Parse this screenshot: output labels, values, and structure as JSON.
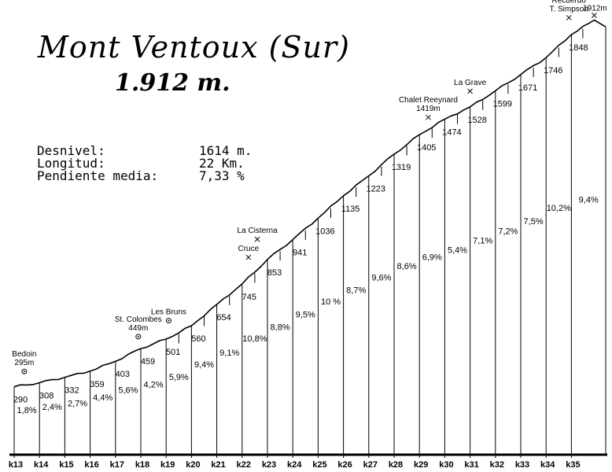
{
  "header": {
    "title": "Mont Ventoux (Sur)",
    "subtitle": "1.912 m."
  },
  "stats": [
    {
      "label": "Desnivel:",
      "value": "1614 m."
    },
    {
      "label": "Longitud:",
      "value": "22 Km."
    },
    {
      "label": "Pendiente media:",
      "value": "7,33 %"
    }
  ],
  "chart_data": {
    "type": "area",
    "xlabel": "",
    "ylabel": "",
    "xlim": [
      13,
      35.9
    ],
    "ylim": [
      0,
      1912
    ],
    "km_labels": [
      "k13",
      "k14",
      "k15",
      "k16",
      "k17",
      "k18",
      "k19",
      "k20",
      "k21",
      "k22",
      "k23",
      "k24",
      "k25",
      "k26",
      "k27",
      "k28",
      "k29",
      "k30",
      "k31",
      "k32",
      "k33",
      "k34",
      "k35"
    ],
    "km_marks": [
      13,
      14,
      15,
      16,
      17,
      18,
      19,
      20,
      21,
      22,
      23,
      24,
      25,
      26,
      27,
      28,
      29,
      30,
      31,
      32,
      33,
      34,
      35
    ],
    "km_altitudes": [
      290,
      308,
      332,
      359,
      403,
      459,
      501,
      560,
      654,
      745,
      853,
      941,
      1036,
      1135,
      1223,
      1319,
      1405,
      1474,
      1528,
      1599,
      1671,
      1746,
      1848
    ],
    "segment_gradients": [
      "1,8%",
      "2,4%",
      "2,7%",
      "4,4%",
      "5,6%",
      "4,2%",
      "5,9%",
      "9,4%",
      "9,1%",
      "10,8%",
      "8,8%",
      "9,5%",
      "10 %",
      "8,7%",
      "9,6%",
      "8,6%",
      "6,9%",
      "5,4%",
      "7,1%",
      "7,2%",
      "7,5%",
      "10,2%",
      "9,4%"
    ],
    "summit": {
      "x": 35.9,
      "y": 1912,
      "label": "1912m"
    },
    "landmarks": [
      {
        "name": "Bedoin",
        "altitude_label": "295m",
        "x": 13.4,
        "y": 295,
        "marker": "circle"
      },
      {
        "name": "St. Colombes",
        "altitude_label": "449m",
        "x": 17.9,
        "y": 449,
        "marker": "circle"
      },
      {
        "name": "Les Bruns",
        "altitude_label": "",
        "x": 19.1,
        "y": 520,
        "marker": "circle"
      },
      {
        "name": "Cruce",
        "altitude_label": "",
        "x": 22.25,
        "y": 800,
        "marker": "cross"
      },
      {
        "name": "La Cisterna",
        "altitude_label": "",
        "x": 22.6,
        "y": 880,
        "marker": "cross"
      },
      {
        "name": "Chalet Reeynard",
        "altitude_label": "1419m",
        "x": 29.35,
        "y": 1419,
        "marker": "cross"
      },
      {
        "name": "La Grave",
        "altitude_label": "",
        "x": 31.0,
        "y": 1535,
        "marker": "cross"
      },
      {
        "name": "Recuerdo T. Simpson",
        "altitude_label": "",
        "x": 34.9,
        "y": 1860,
        "marker": "cross"
      }
    ]
  }
}
